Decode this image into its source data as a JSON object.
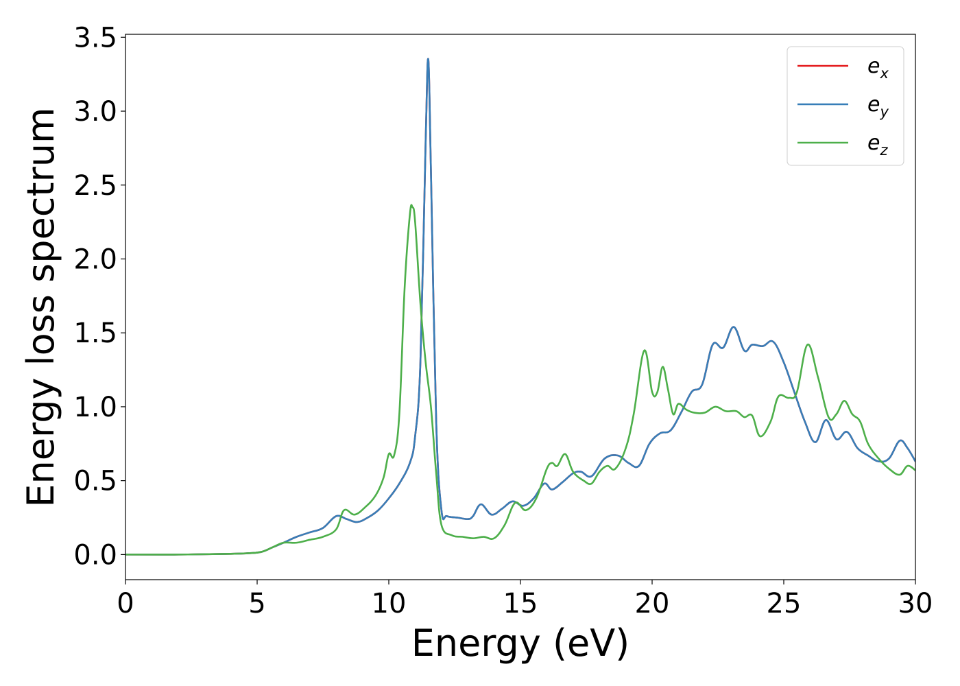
{
  "chart_data": {
    "type": "line",
    "xlabel": "Energy (eV)",
    "ylabel": "Energy loss spectrum",
    "xlim": [
      0,
      30
    ],
    "ylim": [
      -0.17,
      3.52
    ],
    "xticks": [
      0,
      5,
      10,
      15,
      20,
      25,
      30
    ],
    "xtick_labels": [
      "0",
      "5",
      "10",
      "15",
      "20",
      "25",
      "30"
    ],
    "yticks": [
      0.0,
      0.5,
      1.0,
      1.5,
      2.0,
      2.5,
      3.0,
      3.5
    ],
    "ytick_labels": [
      "0.0",
      "0.5",
      "1.0",
      "1.5",
      "2.0",
      "2.5",
      "3.0",
      "3.5"
    ],
    "grid": false,
    "legend_position": "top-right",
    "series": [
      {
        "name": "e_x",
        "label_base": "e",
        "label_sub": "x",
        "color": "#e41a1c",
        "x": [
          0,
          2,
          4,
          4.8,
          5.2,
          5.6,
          6.0,
          6.5,
          7.0,
          7.5,
          8.0,
          8.4,
          8.8,
          9.2,
          9.6,
          10.0,
          10.4,
          10.8,
          11.0,
          11.2,
          11.4,
          11.5,
          11.6,
          11.8,
          12.0,
          12.2,
          12.6,
          13.0,
          13.2,
          13.5,
          13.9,
          14.3,
          14.7,
          15.1,
          15.5,
          15.9,
          16.2,
          16.6,
          17.0,
          17.3,
          17.7,
          18.2,
          18.7,
          19.1,
          19.5,
          19.9,
          20.3,
          20.7,
          21.1,
          21.5,
          21.9,
          22.3,
          22.7,
          23.1,
          23.5,
          23.8,
          24.2,
          24.6,
          25.0,
          25.4,
          25.8,
          26.2,
          26.6,
          27.0,
          27.4,
          27.8,
          28.2,
          28.6,
          29.0,
          29.4,
          29.7,
          30.0
        ],
        "values": [
          0.0,
          0.0,
          0.005,
          0.01,
          0.02,
          0.05,
          0.08,
          0.12,
          0.15,
          0.18,
          0.26,
          0.24,
          0.22,
          0.25,
          0.3,
          0.38,
          0.48,
          0.62,
          0.8,
          1.3,
          2.8,
          3.35,
          2.6,
          0.9,
          0.3,
          0.26,
          0.25,
          0.24,
          0.26,
          0.34,
          0.27,
          0.31,
          0.36,
          0.33,
          0.38,
          0.48,
          0.44,
          0.49,
          0.55,
          0.56,
          0.53,
          0.65,
          0.67,
          0.62,
          0.6,
          0.75,
          0.82,
          0.84,
          0.96,
          1.1,
          1.15,
          1.42,
          1.4,
          1.54,
          1.38,
          1.42,
          1.41,
          1.44,
          1.3,
          1.1,
          0.9,
          0.76,
          0.91,
          0.78,
          0.83,
          0.72,
          0.67,
          0.63,
          0.65,
          0.77,
          0.72,
          0.63
        ]
      },
      {
        "name": "e_y",
        "label_base": "e",
        "label_sub": "y",
        "color": "#377eb8",
        "x": [
          0,
          2,
          4,
          4.8,
          5.2,
          5.6,
          6.0,
          6.5,
          7.0,
          7.5,
          8.0,
          8.4,
          8.8,
          9.2,
          9.6,
          10.0,
          10.4,
          10.8,
          11.0,
          11.2,
          11.4,
          11.5,
          11.6,
          11.8,
          12.0,
          12.2,
          12.6,
          13.0,
          13.2,
          13.5,
          13.9,
          14.3,
          14.7,
          15.1,
          15.5,
          15.9,
          16.2,
          16.6,
          17.0,
          17.3,
          17.7,
          18.2,
          18.7,
          19.1,
          19.5,
          19.9,
          20.3,
          20.7,
          21.1,
          21.5,
          21.9,
          22.3,
          22.7,
          23.1,
          23.5,
          23.8,
          24.2,
          24.6,
          25.0,
          25.4,
          25.8,
          26.2,
          26.6,
          27.0,
          27.4,
          27.8,
          28.2,
          28.6,
          29.0,
          29.4,
          29.7,
          30.0
        ],
        "values": [
          0.0,
          0.0,
          0.005,
          0.01,
          0.02,
          0.05,
          0.08,
          0.12,
          0.15,
          0.18,
          0.26,
          0.24,
          0.22,
          0.25,
          0.3,
          0.38,
          0.48,
          0.62,
          0.8,
          1.3,
          2.8,
          3.35,
          2.6,
          0.9,
          0.3,
          0.26,
          0.25,
          0.24,
          0.26,
          0.34,
          0.27,
          0.31,
          0.36,
          0.33,
          0.38,
          0.48,
          0.44,
          0.49,
          0.55,
          0.56,
          0.53,
          0.65,
          0.67,
          0.62,
          0.6,
          0.75,
          0.82,
          0.84,
          0.96,
          1.1,
          1.15,
          1.42,
          1.4,
          1.54,
          1.38,
          1.42,
          1.41,
          1.44,
          1.3,
          1.1,
          0.9,
          0.76,
          0.91,
          0.78,
          0.83,
          0.72,
          0.67,
          0.63,
          0.65,
          0.77,
          0.72,
          0.63
        ]
      },
      {
        "name": "e_z",
        "label_base": "e",
        "label_sub": "z",
        "color": "#4daf4a",
        "x": [
          0,
          2,
          4,
          4.8,
          5.2,
          5.6,
          6.0,
          6.5,
          7.0,
          7.5,
          8.0,
          8.3,
          8.7,
          9.1,
          9.5,
          9.8,
          10.0,
          10.2,
          10.4,
          10.6,
          10.8,
          10.9,
          11.0,
          11.2,
          11.4,
          11.6,
          11.8,
          12.0,
          12.4,
          12.8,
          13.2,
          13.6,
          14.0,
          14.4,
          14.8,
          15.2,
          15.6,
          16.0,
          16.2,
          16.4,
          16.7,
          17.0,
          17.4,
          17.7,
          18.0,
          18.3,
          18.6,
          19.0,
          19.3,
          19.7,
          20.0,
          20.2,
          20.4,
          20.6,
          20.8,
          21.0,
          21.3,
          21.6,
          22.0,
          22.4,
          22.8,
          23.2,
          23.5,
          23.8,
          24.1,
          24.5,
          24.8,
          25.2,
          25.5,
          25.9,
          26.3,
          26.7,
          27.0,
          27.3,
          27.6,
          27.9,
          28.2,
          28.6,
          29.0,
          29.4,
          29.7,
          30.0
        ],
        "values": [
          0.0,
          0.0,
          0.005,
          0.01,
          0.02,
          0.05,
          0.08,
          0.08,
          0.1,
          0.12,
          0.17,
          0.3,
          0.27,
          0.32,
          0.4,
          0.52,
          0.68,
          0.67,
          0.95,
          1.8,
          2.3,
          2.35,
          2.25,
          1.7,
          1.3,
          1.0,
          0.55,
          0.2,
          0.13,
          0.12,
          0.11,
          0.12,
          0.11,
          0.2,
          0.35,
          0.3,
          0.38,
          0.58,
          0.62,
          0.6,
          0.68,
          0.56,
          0.5,
          0.48,
          0.56,
          0.6,
          0.58,
          0.72,
          0.95,
          1.38,
          1.1,
          1.1,
          1.27,
          1.12,
          0.95,
          1.02,
          0.98,
          0.96,
          0.96,
          1.0,
          0.97,
          0.97,
          0.93,
          0.94,
          0.8,
          0.9,
          1.07,
          1.06,
          1.1,
          1.42,
          1.2,
          0.93,
          0.95,
          1.04,
          0.95,
          0.9,
          0.75,
          0.65,
          0.58,
          0.54,
          0.6,
          0.57
        ]
      }
    ]
  }
}
